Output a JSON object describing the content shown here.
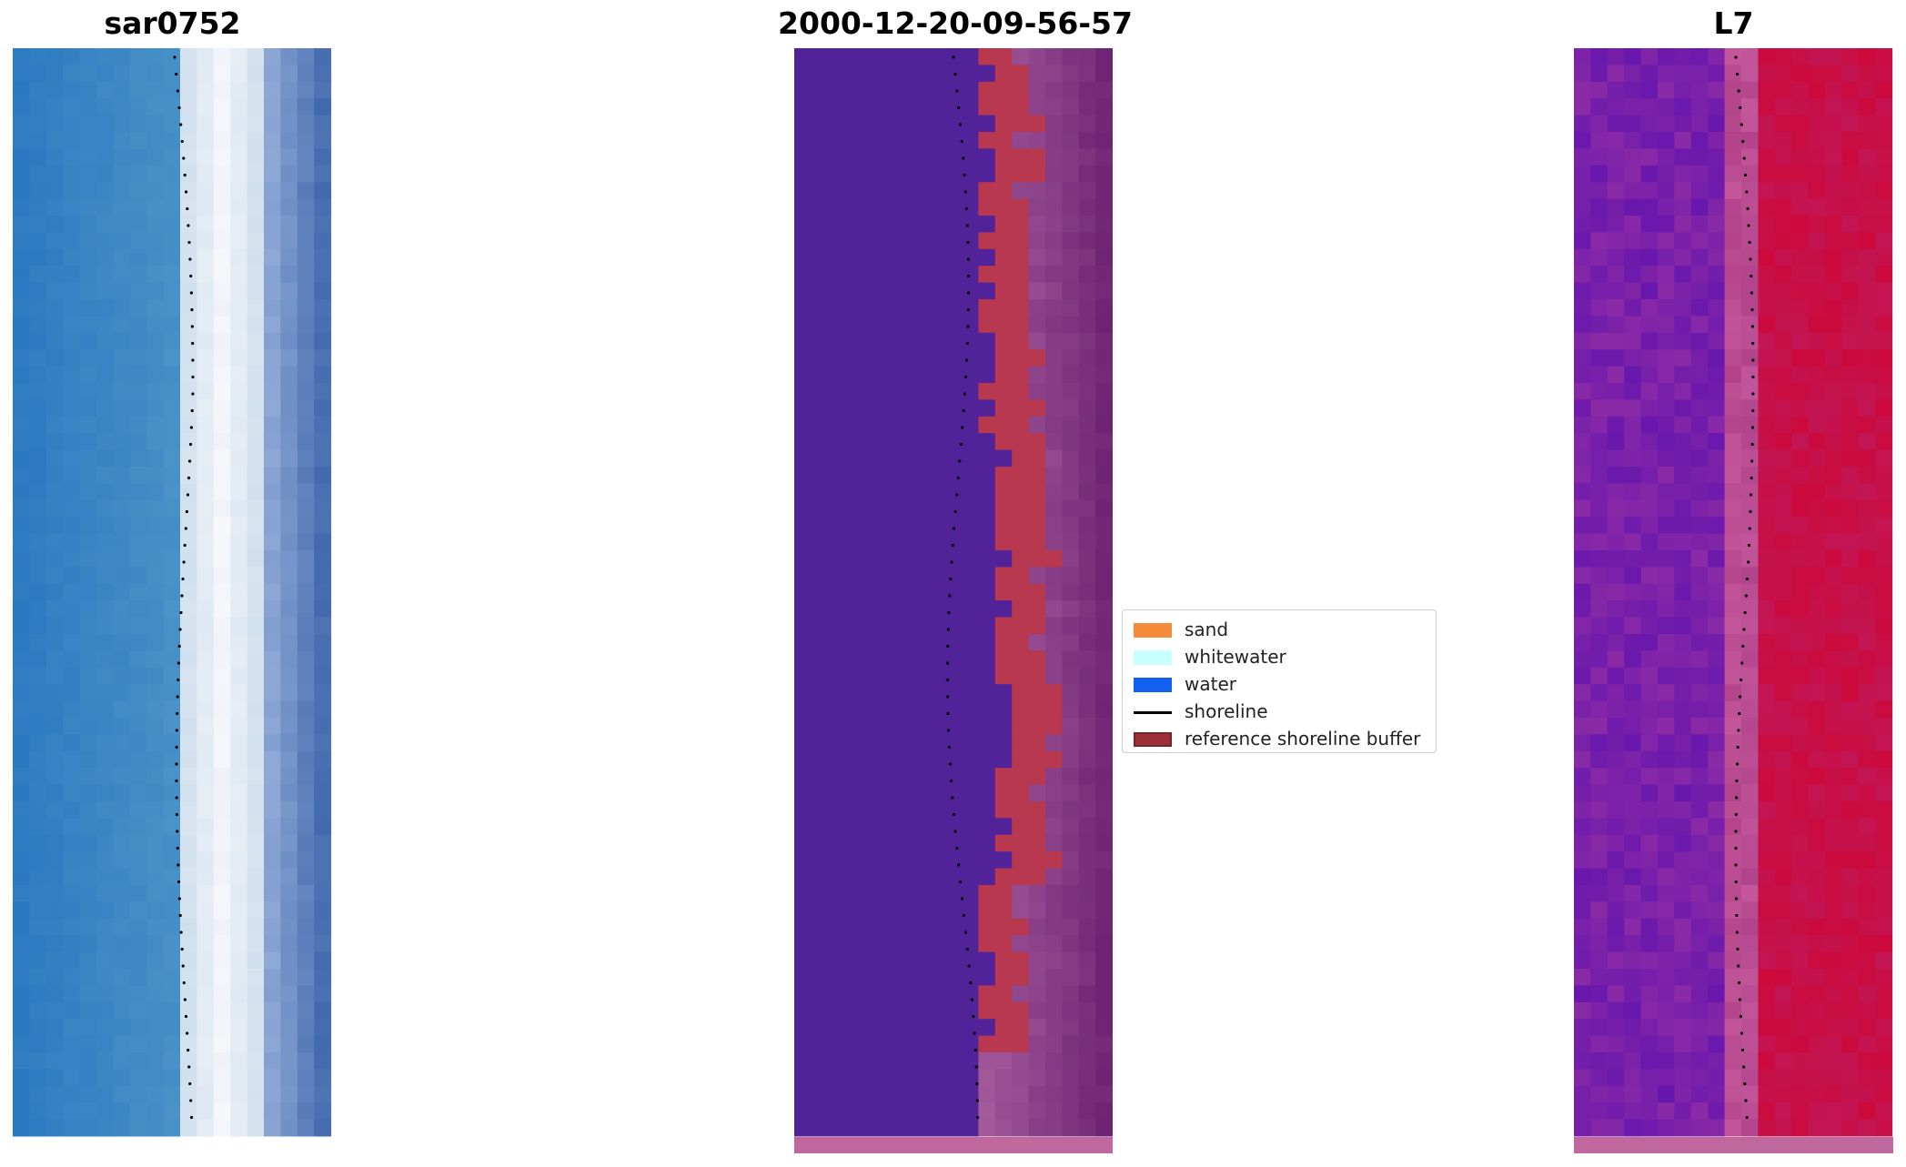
{
  "panels": [
    {
      "title": "sar0752"
    },
    {
      "title": "2000-12-20-09-56-57"
    },
    {
      "title": "L7"
    }
  ],
  "legend": {
    "items": [
      {
        "label": "sand",
        "color": "#f78b3c",
        "kind": "patch"
      },
      {
        "label": "whitewater",
        "color": "#c8ffff",
        "kind": "patch"
      },
      {
        "label": "water",
        "color": "#1160f0",
        "kind": "patch"
      },
      {
        "label": "shoreline",
        "color": "#000000",
        "kind": "line"
      },
      {
        "label": "reference shoreline buffer",
        "color": "#9b3138",
        "kind": "patch"
      }
    ]
  },
  "colors": {
    "rgb_water": "#2e7cc0",
    "rgb_surf": "#f0f4fa",
    "class_water": "#522299",
    "class_buffer": "#b8394f",
    "class_ocean": "#8e3c86",
    "index_land": "#7a1fa8",
    "index_sea": "#cc0a3c"
  }
}
